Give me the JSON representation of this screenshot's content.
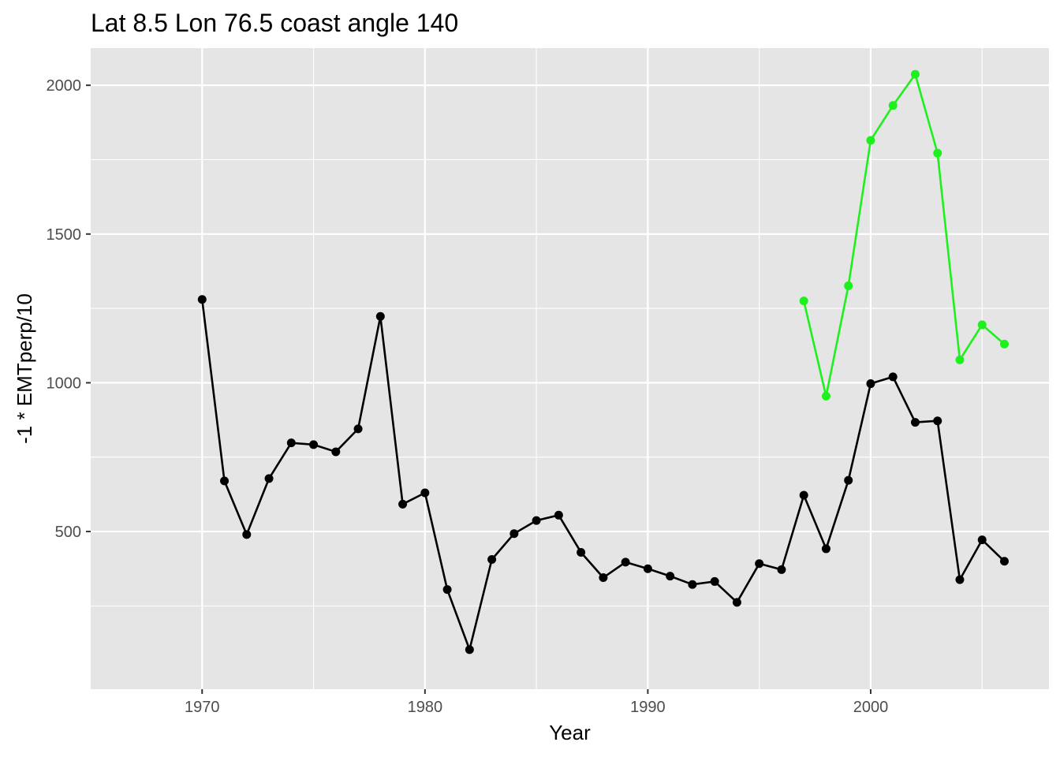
{
  "chart_data": {
    "type": "line",
    "title": "Lat 8.5 Lon 76.5 coast angle 140",
    "xlabel": "Year",
    "ylabel": "-1 * EMTperp/10",
    "xlim": [
      1965,
      2008
    ],
    "ylim": [
      -30,
      2125
    ],
    "x_ticks": [
      1970,
      1980,
      1990,
      2000
    ],
    "y_ticks": [
      500,
      1000,
      1500,
      2000
    ],
    "grid": true,
    "legend": "none",
    "panel_color": "#e5e5e5",
    "series": [
      {
        "color": "#000000",
        "x": [
          1970,
          1971,
          1972,
          1973,
          1974,
          1975,
          1976,
          1977,
          1978,
          1979,
          1980,
          1981,
          1982,
          1983,
          1984,
          1985,
          1986,
          1987,
          1988,
          1989,
          1990,
          1991,
          1992,
          1993,
          1994,
          1995,
          1996,
          1997,
          1998,
          1999,
          2000,
          2001,
          2002,
          2003,
          2004,
          2005,
          2006
        ],
        "y": [
          1280,
          670,
          490,
          678,
          798,
          792,
          768,
          845,
          1223,
          592,
          630,
          305,
          103,
          406,
          493,
          537,
          555,
          430,
          345,
          397,
          375,
          350,
          322,
          332,
          262,
          392,
          372,
          622,
          442,
          672,
          997,
          1020,
          867,
          872,
          338,
          472,
          400
        ]
      },
      {
        "color": "#1ef01e",
        "x": [
          1997,
          1998,
          1999,
          2000,
          2001,
          2002,
          2003,
          2004,
          2005,
          2006
        ],
        "y": [
          1275,
          955,
          1326,
          1815,
          1932,
          2037,
          1772,
          1077,
          1195,
          1130
        ]
      }
    ]
  }
}
